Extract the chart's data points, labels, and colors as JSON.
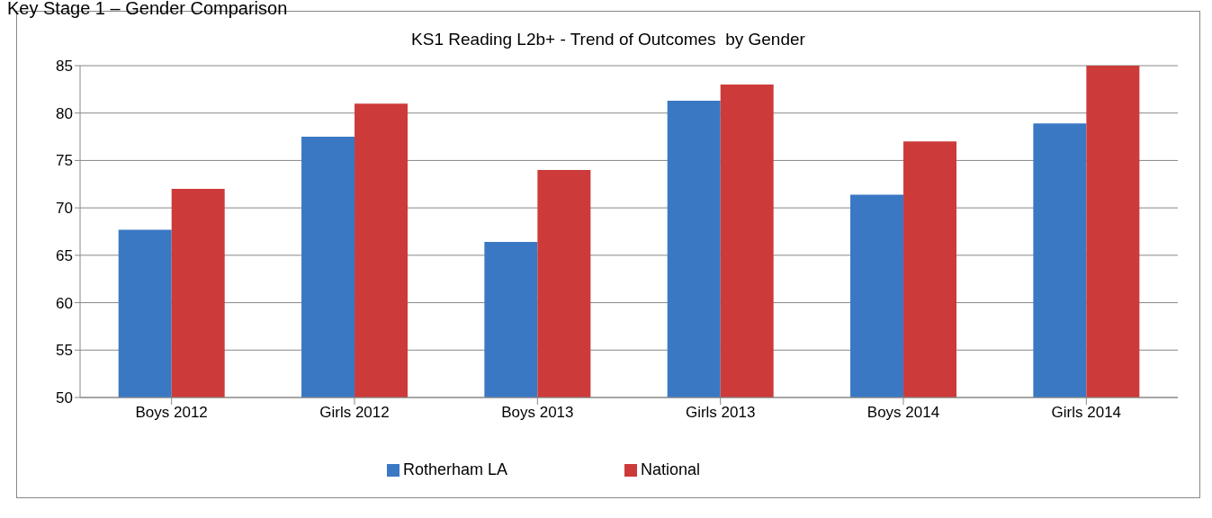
{
  "chart_data": {
    "type": "bar",
    "title": "Key Stage 1 – Gender Comparison",
    "subtitle": "KS1 Reading L2b+ - Trend of Outcomes  by Gender",
    "categories": [
      "Boys 2012",
      "Girls 2012",
      "Boys 2013",
      "Girls 2013",
      "Boys 2014",
      "Girls 2014"
    ],
    "series": [
      {
        "name": "Rotherham LA",
        "color": "#3a78c4",
        "values": [
          67.7,
          77.5,
          66.4,
          81.3,
          71.4,
          78.9
        ]
      },
      {
        "name": "National",
        "color": "#cc3b3a",
        "values": [
          72,
          81,
          74,
          83,
          77,
          85
        ]
      }
    ],
    "ylim": [
      50,
      85
    ],
    "yticks": [
      50,
      55,
      60,
      65,
      70,
      75,
      80,
      85
    ],
    "grid": "y",
    "legend": "bottom"
  }
}
